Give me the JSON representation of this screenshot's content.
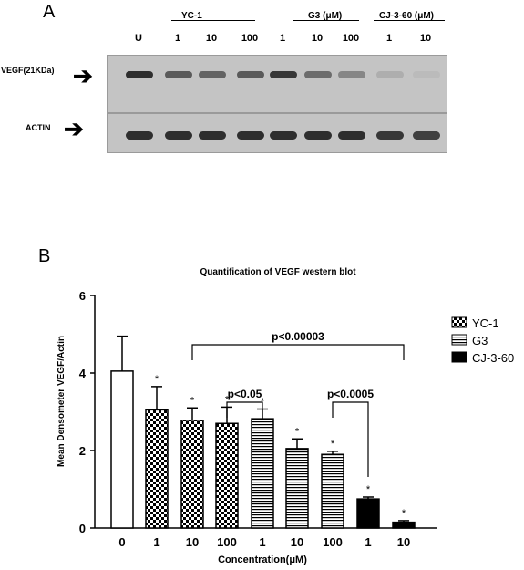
{
  "panel_a": {
    "letter": "A",
    "groups": [
      {
        "label": "YC-1"
      },
      {
        "label": "G3 (μM)"
      },
      {
        "label": "CJ-3-60  (μM)"
      }
    ],
    "lanes": [
      "U",
      "1",
      "10",
      "100",
      "1",
      "10",
      "100",
      "1",
      "10"
    ],
    "row_labels": {
      "vegf": "VEGF(21KDa)",
      "actin": "ACTIN"
    },
    "vegf_band_intensity": [
      0.85,
      0.6,
      0.55,
      0.6,
      0.8,
      0.5,
      0.35,
      0.12,
      0.05
    ],
    "actin_band_intensity": [
      0.85,
      0.85,
      0.85,
      0.85,
      0.85,
      0.85,
      0.85,
      0.8,
      0.75
    ]
  },
  "panel_b": {
    "letter": "B",
    "title": "Quantification of VEGF western blot",
    "ylabel": "Mean Densometer VEGF/Actin",
    "xlabel": "Concentration(μM)",
    "significance": {
      "star": "*",
      "labels": [
        "p<0.00003",
        "p<0.05",
        "p<0.0005"
      ]
    }
  },
  "chart_data": {
    "type": "bar",
    "title": "Quantification of VEGF western blot",
    "xlabel": "Concentration(μM)",
    "ylabel": "Mean Densometer VEGF/Actin",
    "ylim": [
      0,
      6
    ],
    "yticks": [
      0,
      2,
      4,
      6
    ],
    "categories": [
      "0",
      "1",
      "10",
      "100",
      "1",
      "10",
      "100",
      "1",
      "10"
    ],
    "values": [
      4.05,
      3.05,
      2.78,
      2.7,
      2.82,
      2.05,
      1.9,
      0.75,
      0.15
    ],
    "errors": [
      0.9,
      0.6,
      0.32,
      0.42,
      0.25,
      0.25,
      0.08,
      0.05,
      0.04
    ],
    "groups": [
      "control",
      "YC-1",
      "YC-1",
      "YC-1",
      "G3",
      "G3",
      "G3",
      "CJ-3-60",
      "CJ-3-60"
    ],
    "significant": [
      false,
      true,
      true,
      true,
      true,
      true,
      true,
      true,
      true
    ],
    "legend": [
      {
        "name": "YC-1",
        "pattern": "crosshatch"
      },
      {
        "name": "G3",
        "pattern": "horizontal-lines"
      },
      {
        "name": "CJ-3-60",
        "pattern": "solid-black"
      }
    ],
    "legend_position": "right",
    "brackets": [
      {
        "from": 2,
        "to": 8,
        "label": "p<0.00003"
      },
      {
        "from": 3,
        "to": 4,
        "label": "p<0.05"
      },
      {
        "from": 6,
        "to": 7,
        "label": "p<0.0005"
      }
    ],
    "grid": false
  }
}
